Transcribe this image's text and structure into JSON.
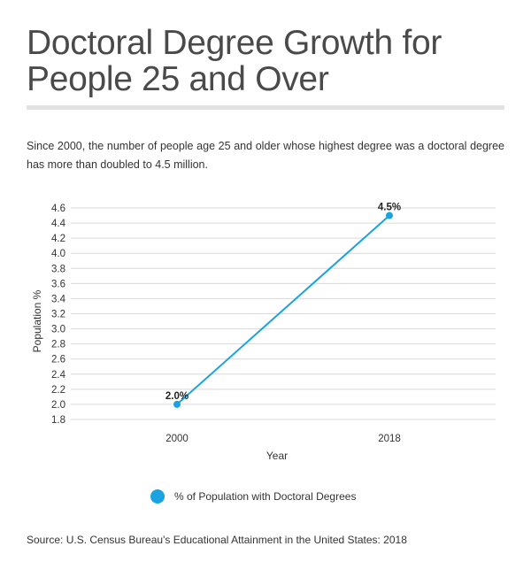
{
  "title": "Doctoral Degree Growth for People 25 and Over",
  "subtitle": "Since 2000, the number of people age 25 and older whose highest degree was a doctoral degree has more than doubled to 4.5 million.",
  "legend_label": "% of Population with Doctoral Degrees",
  "source": "Source: U.S. Census Bureau's Educational Attainment in the United States: 2018",
  "colors": {
    "series": "#1aa3e0",
    "grid": "#d9d9d9",
    "rule": "#e2e2e2"
  },
  "chart_data": {
    "type": "line",
    "x": [
      "2000",
      "2018"
    ],
    "series": [
      {
        "name": "% of Population with Doctoral Degrees",
        "values": [
          2.0,
          4.5
        ],
        "labels": [
          "2.0%",
          "4.5%"
        ]
      }
    ],
    "xlabel": "Year",
    "ylabel": "Population %",
    "ylim": [
      1.8,
      4.6
    ],
    "yticks": [
      "1.8",
      "2.0",
      "2.2",
      "2.4",
      "2.6",
      "2.8",
      "3.0",
      "3.2",
      "3.4",
      "3.6",
      "3.8",
      "4.0",
      "4.2",
      "4.4",
      "4.6"
    ],
    "grid": true,
    "legend": "bottom"
  }
}
